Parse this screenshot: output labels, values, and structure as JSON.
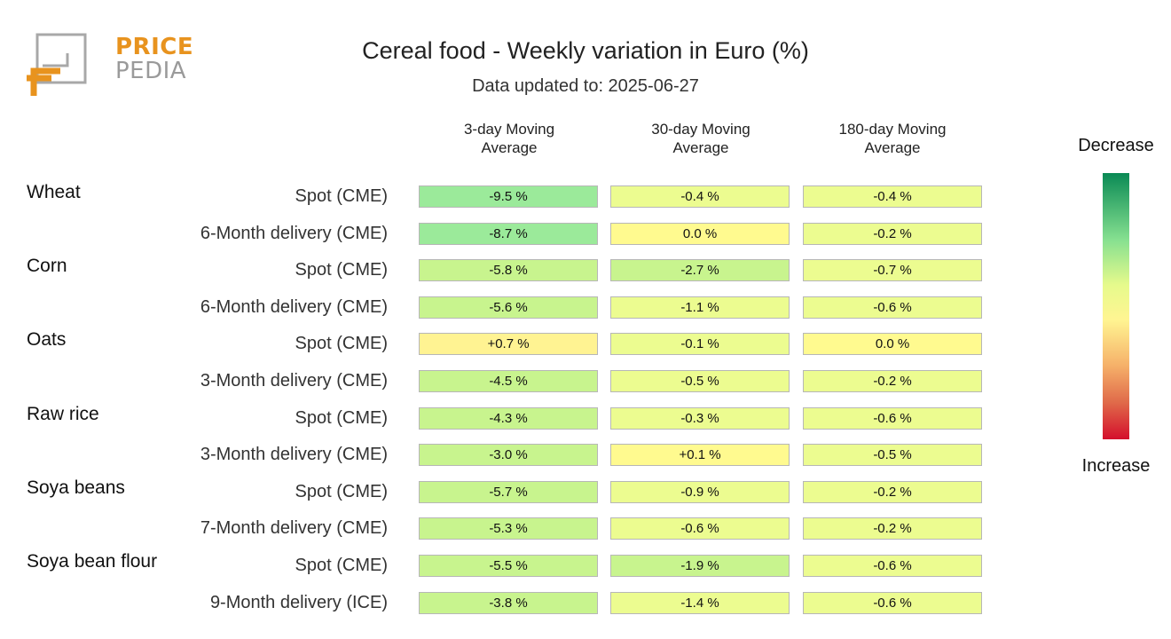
{
  "logo": {
    "word1": "PRICE",
    "word2": "PEDIA"
  },
  "title": "Cereal food - Weekly variation in Euro (%)",
  "subtitle": "Data updated to: 2025-06-27",
  "columns": [
    "3-day Moving\nAverage",
    "30-day Moving\nAverage",
    "180-day Moving\nAverage"
  ],
  "legend": {
    "top": "Decrease",
    "bottom": "Increase"
  },
  "colors": {
    "strong_decrease": "#9bea9a",
    "decrease": "#c8f48e",
    "slight_decrease": "#ecfc90",
    "neutral": "#fffa8f",
    "increase": "#fff392"
  },
  "chart_data": {
    "type": "table",
    "title": "Cereal food - Weekly variation in Euro (%)",
    "columns": [
      "3-day Moving Average",
      "30-day Moving Average",
      "180-day Moving Average"
    ],
    "groups": [
      "Wheat",
      "Corn",
      "Oats",
      "Raw rice",
      "Soya beans",
      "Soya bean flour"
    ],
    "rows": [
      {
        "group": "Wheat",
        "label": "Spot (CME)",
        "values": [
          "-9.5 %",
          "-0.4 %",
          "-0.4 %"
        ],
        "nums": [
          -9.5,
          -0.4,
          -0.4
        ]
      },
      {
        "group": "",
        "label": "6-Month delivery (CME)",
        "values": [
          "-8.7 %",
          "0.0 %",
          "-0.2 %"
        ],
        "nums": [
          -8.7,
          0.0,
          -0.2
        ]
      },
      {
        "group": "Corn",
        "label": "Spot (CME)",
        "values": [
          "-5.8 %",
          "-2.7 %",
          "-0.7 %"
        ],
        "nums": [
          -5.8,
          -2.7,
          -0.7
        ]
      },
      {
        "group": "",
        "label": "6-Month delivery (CME)",
        "values": [
          "-5.6 %",
          "-1.1 %",
          "-0.6 %"
        ],
        "nums": [
          -5.6,
          -1.1,
          -0.6
        ]
      },
      {
        "group": "Oats",
        "label": "Spot (CME)",
        "values": [
          "+0.7 %",
          "-0.1 %",
          "0.0 %"
        ],
        "nums": [
          0.7,
          -0.1,
          0.0
        ]
      },
      {
        "group": "",
        "label": "3-Month delivery (CME)",
        "values": [
          "-4.5 %",
          "-0.5 %",
          "-0.2 %"
        ],
        "nums": [
          -4.5,
          -0.5,
          -0.2
        ]
      },
      {
        "group": "Raw rice",
        "label": "Spot (CME)",
        "values": [
          "-4.3 %",
          "-0.3 %",
          "-0.6 %"
        ],
        "nums": [
          -4.3,
          -0.3,
          -0.6
        ]
      },
      {
        "group": "",
        "label": "3-Month delivery (CME)",
        "values": [
          "-3.0 %",
          "+0.1 %",
          "-0.5 %"
        ],
        "nums": [
          -3.0,
          0.1,
          -0.5
        ]
      },
      {
        "group": "Soya beans",
        "label": "Spot (CME)",
        "values": [
          "-5.7 %",
          "-0.9 %",
          "-0.2 %"
        ],
        "nums": [
          -5.7,
          -0.9,
          -0.2
        ]
      },
      {
        "group": "",
        "label": "7-Month delivery (CME)",
        "values": [
          "-5.3 %",
          "-0.6 %",
          "-0.2 %"
        ],
        "nums": [
          -5.3,
          -0.6,
          -0.2
        ]
      },
      {
        "group": "Soya bean flour",
        "label": "Spot (CME)",
        "values": [
          "-5.5 %",
          "-1.9 %",
          "-0.6 %"
        ],
        "nums": [
          -5.5,
          -1.9,
          -0.6
        ]
      },
      {
        "group": "",
        "label": "9-Month delivery (ICE)",
        "values": [
          "-3.8 %",
          "-1.4 %",
          "-0.6 %"
        ],
        "nums": [
          -3.8,
          -1.4,
          -0.6
        ]
      }
    ]
  }
}
